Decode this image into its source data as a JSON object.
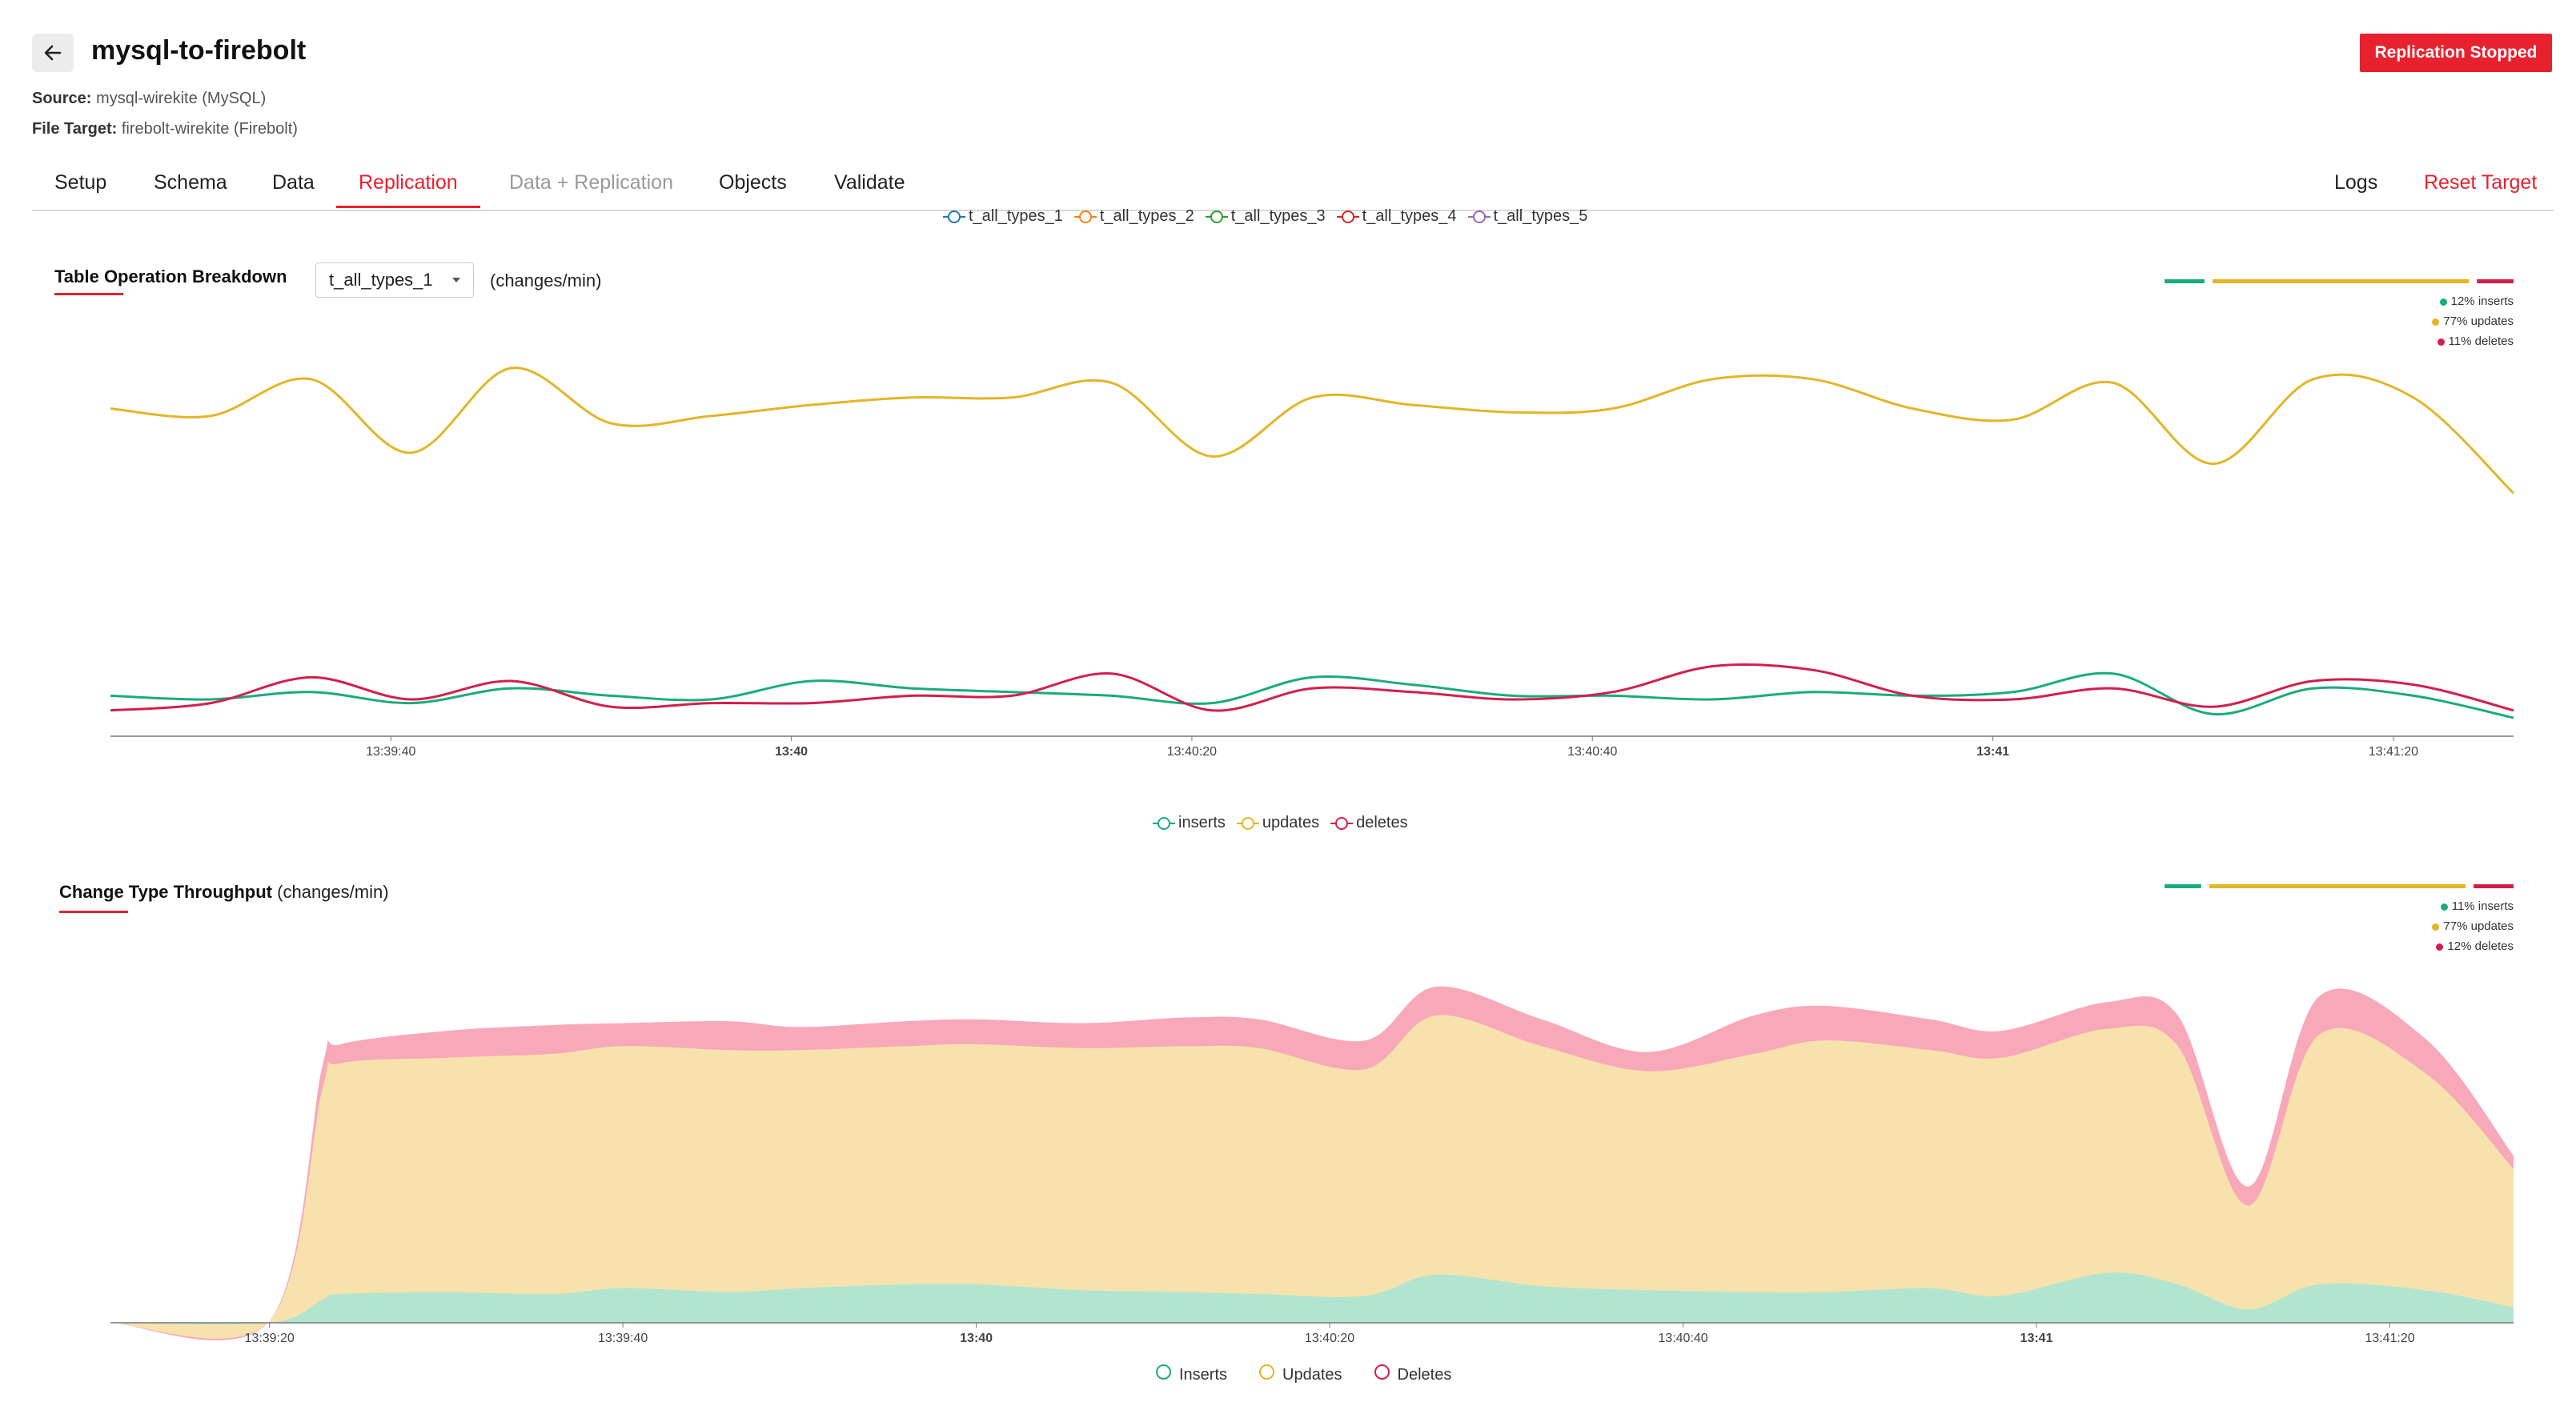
{
  "header": {
    "title": "mysql-to-firebolt",
    "source_label": "Source:",
    "source_value": "mysql-wirekite (MySQL)",
    "target_label": "File Target:",
    "target_value": "firebolt-wirekite (Firebolt)",
    "status": "Replication Stopped"
  },
  "tabs": {
    "setup": "Setup",
    "schema": "Schema",
    "data": "Data",
    "replication": "Replication",
    "data_replication": "Data + Replication",
    "objects": "Objects",
    "validate": "Validate",
    "logs": "Logs",
    "reset": "Reset Target"
  },
  "top_legend": [
    {
      "label": "t_all_types_1",
      "color": "#1f77b4"
    },
    {
      "label": "t_all_types_2",
      "color": "#ff7f0e"
    },
    {
      "label": "t_all_types_3",
      "color": "#2ca02c"
    },
    {
      "label": "t_all_types_4",
      "color": "#d62728"
    },
    {
      "label": "t_all_types_5",
      "color": "#9467bd"
    }
  ],
  "breakdown": {
    "title": "Table Operation Breakdown",
    "selected_table": "t_all_types_1",
    "unit": "(changes/min)",
    "ratio": {
      "inserts": "12% inserts",
      "updates": "77% updates",
      "deletes": "11% deletes"
    },
    "legend": {
      "inserts": "inserts",
      "updates": "updates",
      "deletes": "deletes"
    }
  },
  "throughput": {
    "title": "Change Type Throughput",
    "unit": "(changes/min)",
    "ratio": {
      "inserts": "11% inserts",
      "updates": "77% updates",
      "deletes": "12% deletes"
    },
    "legend": {
      "inserts": "Inserts",
      "updates": "Updates",
      "deletes": "Deletes"
    }
  },
  "colors": {
    "accent": "#e8212e",
    "inserts": "#1aab7e",
    "updates": "#e4b526",
    "deletes": "#d31f4b",
    "area_inserts": "#b2e5cf",
    "area_updates": "#f7e2ad",
    "area_deletes": "#f8a9b9"
  },
  "chart_data": [
    {
      "type": "line",
      "title": "Table Operation Breakdown",
      "x_ticks": [
        "13:39:40",
        "13:40",
        "13:40:20",
        "13:40:40",
        "13:41",
        "13:41:20"
      ],
      "x": [
        "13:39:26",
        "13:39:31",
        "13:39:36",
        "13:39:41",
        "13:39:46",
        "13:39:51",
        "13:39:56",
        "13:40:01",
        "13:40:06",
        "13:40:11",
        "13:40:16",
        "13:40:21",
        "13:40:26",
        "13:40:31",
        "13:40:36",
        "13:40:41",
        "13:40:46",
        "13:40:51",
        "13:40:56",
        "13:41:01",
        "13:41:06",
        "13:41:11",
        "13:41:16",
        "13:41:21",
        "13:41:26"
      ],
      "series": [
        {
          "name": "updates",
          "values": [
            89,
            87,
            97,
            77,
            100,
            85,
            87,
            90,
            92,
            92,
            96,
            76,
            92,
            90,
            88,
            89,
            97,
            97,
            89,
            86,
            96,
            74,
            97,
            92,
            66
          ]
        },
        {
          "name": "inserts",
          "values": [
            11,
            10,
            12,
            9,
            13,
            11,
            10,
            15,
            13,
            12,
            11,
            9,
            16,
            14,
            11,
            11,
            10,
            12,
            11,
            12,
            17,
            6,
            13,
            11,
            5
          ]
        },
        {
          "name": "deletes",
          "values": [
            7,
            9,
            16,
            10,
            15,
            8,
            9,
            9,
            11,
            11,
            17,
            7,
            13,
            12,
            10,
            12,
            19,
            18,
            11,
            10,
            13,
            8,
            15,
            14,
            7
          ]
        }
      ]
    },
    {
      "type": "area",
      "title": "Change Type Throughput",
      "x_ticks": [
        "13:39:20",
        "13:39:40",
        "13:40",
        "13:40:20",
        "13:40:40",
        "13:41",
        "13:41:20"
      ],
      "x": [
        "13:39:20",
        "13:39:23",
        "13:39:24",
        "13:39:30",
        "13:39:36",
        "13:39:40",
        "13:39:46",
        "13:39:50",
        "13:39:56",
        "13:40:00",
        "13:40:06",
        "13:40:12",
        "13:40:16",
        "13:40:22",
        "13:40:26",
        "13:40:32",
        "13:40:38",
        "13:40:44",
        "13:40:48",
        "13:40:54",
        "13:40:58",
        "13:41:04",
        "13:41:08",
        "13:41:12",
        "13:41:16",
        "13:41:22",
        "13:41:27"
      ],
      "series": [
        {
          "name": "Inserts",
          "values": [
            0,
            12,
            15,
            16,
            15,
            18,
            16,
            18,
            20,
            20,
            17,
            16,
            15,
            14,
            25,
            19,
            17,
            16,
            16,
            18,
            14,
            26,
            20,
            7,
            20,
            17,
            8
          ]
        },
        {
          "name": "Updates",
          "values": [
            1,
            110,
            120,
            122,
            125,
            126,
            126,
            124,
            124,
            125,
            126,
            128,
            128,
            118,
            135,
            125,
            114,
            124,
            131,
            124,
            124,
            127,
            124,
            54,
            130,
            113,
            72
          ]
        },
        {
          "name": "Deletes",
          "values": [
            0,
            12,
            10,
            14,
            15,
            12,
            15,
            12,
            13,
            13,
            13,
            15,
            15,
            15,
            15,
            14,
            10,
            20,
            18,
            16,
            14,
            14,
            16,
            10,
            20,
            18,
            7
          ]
        }
      ]
    }
  ]
}
